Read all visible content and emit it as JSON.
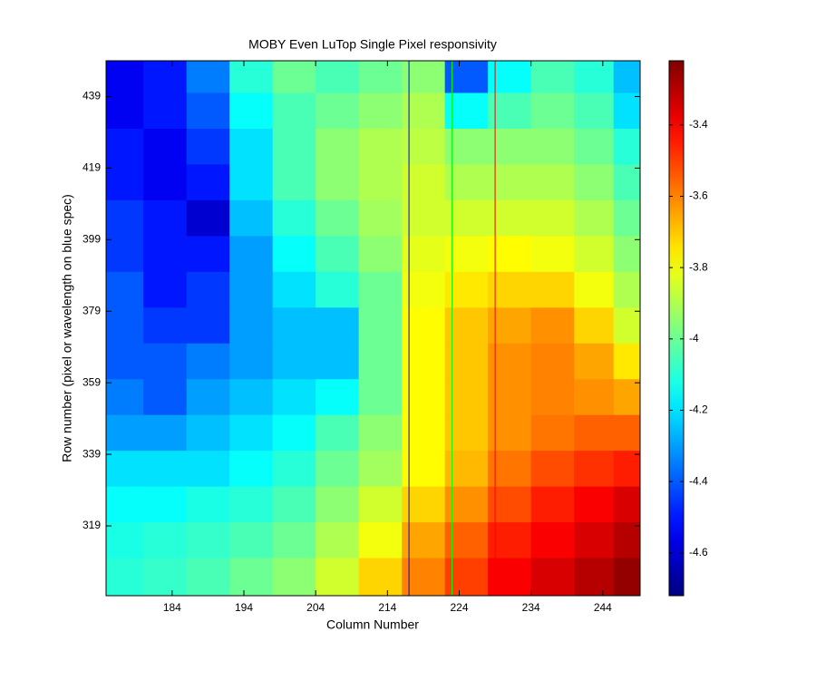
{
  "chart_data": {
    "type": "heatmap",
    "title": "MOBY Even LuTop Single Pixel responsivity",
    "x_label": "Column Number",
    "y_label": "Row number (pixel or wavelength on blue spec)",
    "x": [
      177,
      183,
      189,
      195,
      201,
      207,
      213,
      219,
      225,
      231,
      237,
      243,
      248
    ],
    "y": [
      445,
      435,
      425,
      415,
      405,
      395,
      385,
      375,
      365,
      355,
      345,
      335,
      325,
      315,
      305
    ],
    "z": [
      [
        -4.55,
        -4.5,
        -4.35,
        -4.1,
        -4.0,
        -4.05,
        -4.0,
        -3.95,
        -4.4,
        -4.15,
        -4.05,
        -4.1,
        -4.25
      ],
      [
        -4.55,
        -4.5,
        -4.4,
        -4.15,
        -4.05,
        -4.0,
        -3.95,
        -3.9,
        -4.15,
        -4.05,
        -4.0,
        -4.05,
        -4.2
      ],
      [
        -4.5,
        -4.55,
        -4.45,
        -4.2,
        -4.05,
        -3.95,
        -3.9,
        -3.88,
        -3.95,
        -3.95,
        -3.95,
        -4.0,
        -4.1
      ],
      [
        -4.5,
        -4.55,
        -4.5,
        -4.2,
        -4.05,
        -3.95,
        -3.9,
        -3.85,
        -3.9,
        -3.9,
        -3.9,
        -3.95,
        -4.05
      ],
      [
        -4.45,
        -4.5,
        -4.6,
        -4.25,
        -4.1,
        -4.0,
        -3.92,
        -3.85,
        -3.85,
        -3.85,
        -3.85,
        -3.9,
        -4.0
      ],
      [
        -4.45,
        -4.5,
        -4.5,
        -4.3,
        -4.15,
        -4.05,
        -3.95,
        -3.82,
        -3.8,
        -3.78,
        -3.8,
        -3.85,
        -3.95
      ],
      [
        -4.4,
        -4.5,
        -4.45,
        -4.3,
        -4.2,
        -4.1,
        -4.0,
        -3.8,
        -3.75,
        -3.72,
        -3.72,
        -3.8,
        -3.9
      ],
      [
        -4.4,
        -4.45,
        -4.45,
        -4.3,
        -4.25,
        -4.25,
        -4.0,
        -3.78,
        -3.7,
        -3.65,
        -3.62,
        -3.72,
        -3.85
      ],
      [
        -4.4,
        -4.4,
        -4.35,
        -4.3,
        -4.25,
        -4.25,
        -4.0,
        -3.78,
        -3.7,
        -3.62,
        -3.6,
        -3.65,
        -3.75
      ],
      [
        -4.35,
        -4.4,
        -4.3,
        -4.25,
        -4.2,
        -4.15,
        -4.0,
        -3.78,
        -3.7,
        -3.62,
        -3.6,
        -3.62,
        -3.65
      ],
      [
        -4.3,
        -4.3,
        -4.25,
        -4.2,
        -4.15,
        -4.05,
        -3.95,
        -3.78,
        -3.7,
        -3.62,
        -3.58,
        -3.55,
        -3.55
      ],
      [
        -4.2,
        -4.2,
        -4.2,
        -4.15,
        -4.1,
        -4.0,
        -3.92,
        -3.78,
        -3.68,
        -3.58,
        -3.52,
        -3.48,
        -3.45
      ],
      [
        -4.15,
        -4.15,
        -4.12,
        -4.1,
        -4.05,
        -3.95,
        -3.85,
        -3.72,
        -3.62,
        -3.52,
        -3.45,
        -3.4,
        -3.35
      ],
      [
        -4.12,
        -4.1,
        -4.08,
        -4.05,
        -4.0,
        -3.9,
        -3.8,
        -3.65,
        -3.55,
        -3.45,
        -3.4,
        -3.35,
        -3.3
      ],
      [
        -4.1,
        -4.08,
        -4.05,
        -4.0,
        -3.95,
        -3.85,
        -3.72,
        -3.6,
        -3.5,
        -3.4,
        -3.35,
        -3.3,
        -3.25
      ]
    ],
    "colormap": "jet",
    "xlim": [
      174.8,
      249.2
    ],
    "ylim": [
      299.5,
      449
    ],
    "xticks": [
      184,
      194,
      204,
      214,
      224,
      234,
      244
    ],
    "yticks": [
      319,
      339,
      359,
      379,
      399,
      419,
      439
    ],
    "clim": [
      -4.72,
      -3.22
    ],
    "cticks": [
      -4.6,
      -4.4,
      -4.2,
      -4,
      -3.8,
      -3.6,
      -3.4
    ],
    "lines": [
      {
        "x": 217,
        "color": "#0000ff"
      },
      {
        "x": 223,
        "color": "#00ff00"
      },
      {
        "x": 229,
        "color": "#ff0000"
      }
    ]
  }
}
